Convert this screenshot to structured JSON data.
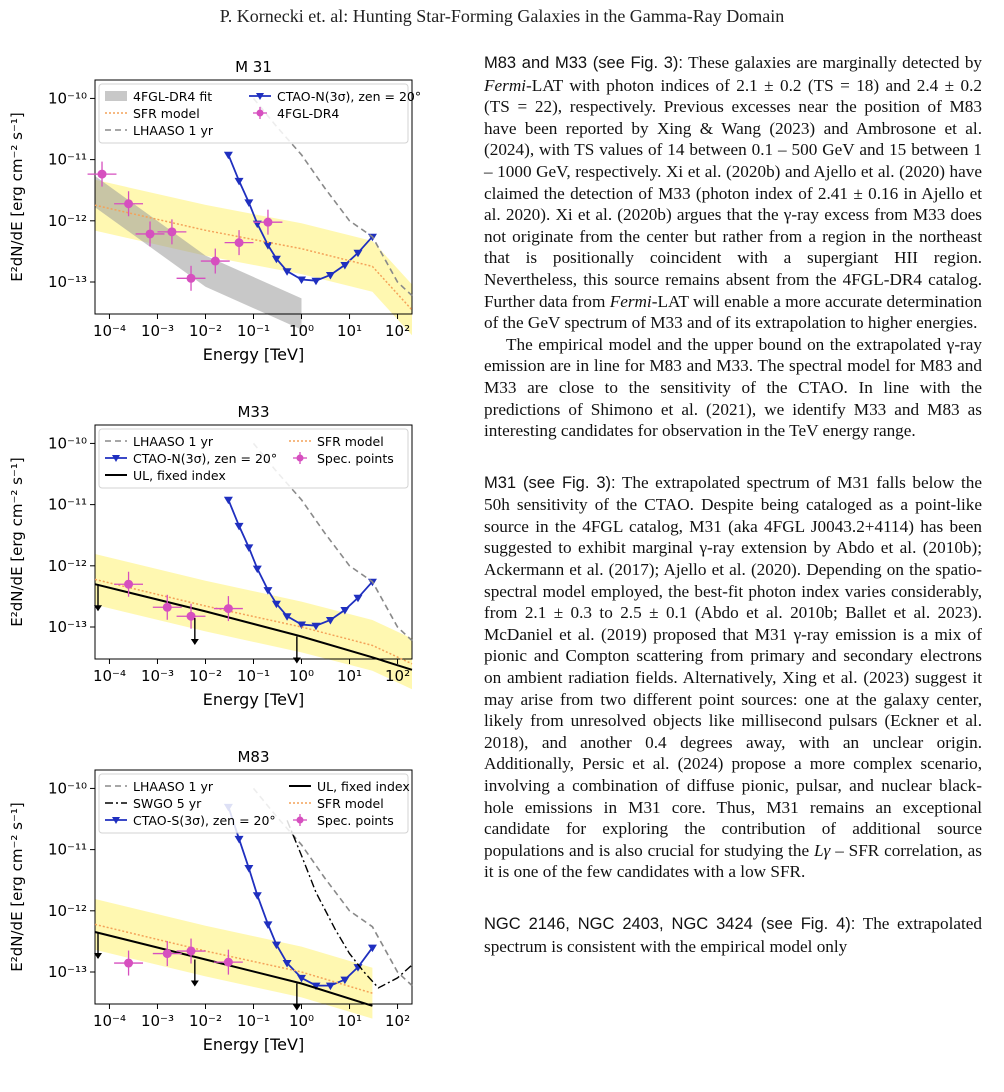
{
  "header": {
    "title": "P. Kornecki et. al: Hunting Star-Forming Galaxies in the Gamma-Ray Domain"
  },
  "colors": {
    "blue": "#1f2fbf",
    "magenta": "#d64fbf",
    "sfr": "#f4a259",
    "band": "#fff7a8",
    "gray": "#8a8a8a",
    "grayband": "#9a9a9a"
  },
  "figures": {
    "m31": {
      "title": "M 31",
      "legend": {
        "fermi_fit": "4FGL-DR4 fit",
        "sfr": "SFR model",
        "lhaaso": "LHAASO 1 yr",
        "ctao": "CTAO-N(3σ), zen = 20°",
        "fermi_pts": "4FGL-DR4"
      }
    },
    "m33": {
      "title": "M33",
      "legend": {
        "lhaaso": "LHAASO 1 yr",
        "ctao": "CTAO-N(3σ), zen = 20°",
        "ul": "UL, fixed index",
        "sfr": "SFR model",
        "spec": "Spec. points"
      }
    },
    "m83": {
      "title": "M83",
      "legend": {
        "lhaaso": "LHAASO 1 yr",
        "swgo": "SWGO 5 yr",
        "ctao": "CTAO-S(3σ), zen = 20°",
        "ul": "UL, fixed index",
        "sfr": "SFR model",
        "spec": "Spec. points"
      }
    },
    "xlabel": "Energy [TeV]",
    "ylabel": "E²dN/dE [erg cm⁻² s⁻¹]",
    "xticks": [
      "10⁻⁴",
      "10⁻³",
      "10⁻²",
      "10⁻¹",
      "10⁰",
      "10¹",
      "10²"
    ],
    "yticks": [
      "10⁻¹⁰",
      "10⁻¹¹",
      "10⁻¹²",
      "10⁻¹³"
    ]
  },
  "chart_data": [
    {
      "type": "line",
      "title": "M 31",
      "xlabel": "Energy [TeV]",
      "ylabel": "E²dN/dE [erg cm⁻² s⁻¹]",
      "xscale": "log",
      "yscale": "log",
      "xlim": [
        5e-05,
        200
      ],
      "ylim": [
        3e-14,
        2e-10
      ],
      "legend_position": "top",
      "series": [
        {
          "name": "4FGL-DR4",
          "kind": "points",
          "x": [
            7e-05,
            0.00025,
            0.0007,
            0.002,
            0.005,
            0.016,
            0.05,
            0.2
          ],
          "y": [
            5.8e-12,
            1.9e-12,
            6.1e-13,
            6.6e-13,
            1.15e-13,
            2.2e-13,
            4.4e-13,
            9.5e-13
          ]
        },
        {
          "name": "CTAO-N(3σ), zen = 20°",
          "kind": "line",
          "x": [
            0.03,
            0.05,
            0.08,
            0.12,
            0.2,
            0.3,
            0.5,
            1,
            2,
            4,
            8,
            15,
            30
          ],
          "y": [
            1.2e-11,
            4.5e-12,
            2e-12,
            9e-13,
            4e-13,
            2.4e-13,
            1.5e-13,
            1.1e-13,
            1.05e-13,
            1.3e-13,
            1.9e-13,
            3e-13,
            5.5e-13
          ]
        },
        {
          "name": "LHAASO 1 yr",
          "kind": "line",
          "x": [
            0.1,
            0.3,
            1,
            3,
            10,
            30,
            100,
            200
          ],
          "y": [
            1e-10,
            3.5e-11,
            1.2e-11,
            3.5e-12,
            1e-12,
            5.5e-13,
            1e-13,
            6e-14
          ]
        },
        {
          "name": "SFR model",
          "kind": "line",
          "x": [
            5e-05,
            0.01,
            1,
            30,
            200
          ],
          "y": [
            1.8e-12,
            7e-13,
            3.5e-13,
            1.8e-13,
            3.5e-14
          ]
        },
        {
          "name": "4FGL-DR4 fit",
          "kind": "line",
          "x": [
            5e-05,
            0.01,
            1
          ],
          "y": [
            3e-12,
            1.5e-13,
            3e-14
          ]
        }
      ]
    },
    {
      "type": "line",
      "title": "M33",
      "xlabel": "Energy [TeV]",
      "ylabel": "E²dN/dE [erg cm⁻² s⁻¹]",
      "xscale": "log",
      "yscale": "log",
      "xlim": [
        5e-05,
        200
      ],
      "ylim": [
        3e-14,
        2e-10
      ],
      "legend_position": "top",
      "series": [
        {
          "name": "Spec. points",
          "kind": "points",
          "x": [
            0.00025,
            0.0016,
            0.005,
            0.03
          ],
          "y": [
            5e-13,
            2.1e-13,
            1.5e-13,
            2e-13
          ]
        },
        {
          "name": "CTAO-N(3σ), zen = 20°",
          "kind": "line",
          "x": [
            0.03,
            0.05,
            0.08,
            0.12,
            0.2,
            0.3,
            0.5,
            1,
            2,
            4,
            8,
            15,
            30
          ],
          "y": [
            1.2e-11,
            4.5e-12,
            2e-12,
            9e-13,
            4e-13,
            2.4e-13,
            1.5e-13,
            1.1e-13,
            1.05e-13,
            1.3e-13,
            1.9e-13,
            3e-13,
            5.5e-13
          ]
        },
        {
          "name": "LHAASO 1 yr",
          "kind": "line",
          "x": [
            0.1,
            0.3,
            1,
            3,
            10,
            30,
            100,
            200
          ],
          "y": [
            1e-10,
            3.5e-11,
            1.2e-11,
            3.5e-12,
            1e-12,
            5.5e-13,
            1e-13,
            6e-14
          ]
        },
        {
          "name": "UL, fixed index",
          "kind": "line",
          "x": [
            5e-05,
            0.01,
            1,
            30,
            200
          ],
          "y": [
            5e-13,
            1.8e-13,
            7e-14,
            3.2e-14,
            2e-14
          ]
        },
        {
          "name": "SFR model",
          "kind": "line",
          "x": [
            5e-05,
            0.01,
            1,
            30,
            200
          ],
          "y": [
            6e-13,
            2.2e-13,
            1e-13,
            5e-14,
            2.5e-14
          ]
        }
      ]
    },
    {
      "type": "line",
      "title": "M83",
      "xlabel": "Energy [TeV]",
      "ylabel": "E²dN/dE [erg cm⁻² s⁻¹]",
      "xscale": "log",
      "yscale": "log",
      "xlim": [
        5e-05,
        200
      ],
      "ylim": [
        3e-14,
        2e-10
      ],
      "legend_position": "top",
      "series": [
        {
          "name": "Spec. points",
          "kind": "points",
          "x": [
            0.00025,
            0.0016,
            0.005,
            0.03
          ],
          "y": [
            1.4e-13,
            2e-13,
            2.2e-13,
            1.45e-13
          ]
        },
        {
          "name": "CTAO-S(3σ), zen = 20°",
          "kind": "line",
          "x": [
            0.03,
            0.05,
            0.08,
            0.12,
            0.2,
            0.3,
            0.5,
            1,
            2,
            4,
            8,
            15,
            30
          ],
          "y": [
            5e-11,
            1.5e-11,
            5e-12,
            1.8e-12,
            6e-13,
            2.8e-13,
            1.4e-13,
            8e-14,
            6e-14,
            6e-14,
            7.5e-14,
            1.2e-13,
            2.5e-13
          ]
        },
        {
          "name": "LHAASO 1 yr",
          "kind": "line",
          "x": [
            0.1,
            0.3,
            1,
            3,
            10,
            30,
            100,
            200
          ],
          "y": [
            1e-10,
            3.5e-11,
            1.2e-11,
            3.5e-12,
            1e-12,
            5.5e-13,
            1e-13,
            6e-14
          ]
        },
        {
          "name": "SWGO 5 yr",
          "kind": "line",
          "x": [
            0.5,
            1,
            2,
            5,
            10,
            20,
            40,
            100,
            200
          ],
          "y": [
            3e-11,
            8e-12,
            2e-12,
            5e-13,
            2e-13,
            1e-13,
            5.5e-14,
            8e-14,
            1.3e-13
          ]
        },
        {
          "name": "UL, fixed index",
          "kind": "line",
          "x": [
            5e-05,
            0.01,
            1,
            30
          ],
          "y": [
            4.5e-13,
            1.6e-13,
            6.5e-14,
            2.8e-14
          ]
        },
        {
          "name": "SFR model",
          "kind": "line",
          "x": [
            5e-05,
            0.01,
            1,
            30
          ],
          "y": [
            6e-13,
            2.2e-13,
            1e-13,
            4.5e-14
          ]
        }
      ]
    }
  ],
  "text": {
    "m83_head": "M83 and M33 (see Fig. 3):",
    "m83_a": " These galaxies are marginally detected by ",
    "fermi": "Fermi",
    "m83_b": "-LAT with photon indices of 2.1 ± 0.2 (TS = 18) and 2.4 ± 0.2 (TS = 22), respectively. Previous excesses near the position of M83 have been reported by Xing & Wang (2023) and Ambrosone et al. (2024), with TS values of 14 between 0.1 – 500 GeV and 15 between 1 – 1000 GeV, respectively. Xi et al. (2020b) and Ajello et al. (2020) have claimed the detection of M33 (photon index of 2.41 ± 0.16 in Ajello et al. 2020). Xi et al. (2020b) argues that the γ-ray excess from M33 does not originate from the center but rather from a region in the northeast that is positionally coincident with a supergiant HII region. Nevertheless, this source remains absent from the 4FGL-DR4 catalog. Further data from ",
    "m83_c": "-LAT will enable a more accurate determination of the GeV spectrum of M33 and of its extrapolation to higher energies.",
    "p2": "The empirical model and the upper bound on the extrapolated γ-ray emission are in line for M83 and M33. The spectral model for M83 and M33 are close to the sensitivity of the CTAO. In line with the predictions of Shimono et al. (2021), we identify M33 and M83 as interesting candidates for observation in the TeV energy range.",
    "m31_head": "M31 (see Fig. 3):",
    "m31_a": " The extrapolated spectrum of M31 falls below the 50h sensitivity of the CTAO. Despite being cataloged as a point-like source in the 4FGL catalog, M31 (aka 4FGL J0043.2+4114) has been suggested to exhibit marginal γ-ray extension by Abdo et al. (2010b); Ackermann et al. (2017); Ajello et al. (2020). Depending on the spatio-spectral model employed, the best-fit photon index varies considerably, from 2.1 ± 0.3 to 2.5 ± 0.1 (Abdo et al. 2010b; Ballet et al. 2023). McDaniel et al. (2019) proposed that M31 γ-ray emission is a mix of pionic and Compton scattering from primary and secondary electrons on ambient radiation fields. Alternatively, Xing et al. (2023) suggest it may arise from two different point sources: one at the galaxy center, likely from unresolved objects like millisecond pulsars (Eckner et al. 2018), and another 0.4 degrees away, with an unclear origin. Additionally, Persic et al. (2024) propose a more complex scenario, involving a combination of diffuse pionic, pulsar, and nuclear black-hole emissions in M31 core. Thus, M31 remains an exceptional candidate for exploring the contribution of additional source populations and is also crucial for studying the ",
    "lgamma": "Lγ",
    "m31_b": " – SFR correlation, as it is one of the few candidates with a low SFR.",
    "ngc_head": "NGC 2146, NGC 2403, NGC 3424 (see Fig. 4):",
    "ngc_a": " The extrapolated spectrum is consistent with the empirical model only"
  }
}
